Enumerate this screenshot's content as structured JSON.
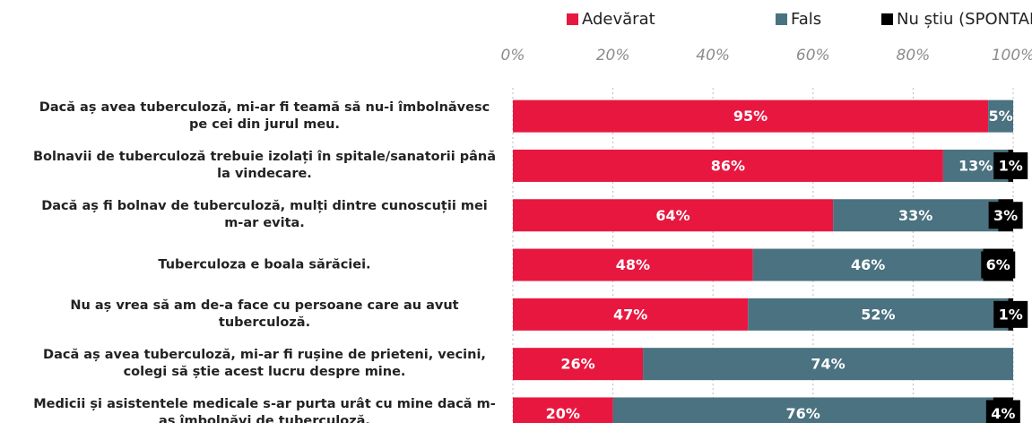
{
  "chart_data": {
    "type": "stacked-bar-horizontal",
    "categories": [
      "Dacă aș avea tuberculoză, mi-ar fi teamă să nu-i îmbolnăvesc pe cei din jurul meu.",
      "Bolnavii de tuberculoză trebuie izolați în spitale/sanatorii până la vindecare.",
      "Dacă aș fi bolnav de tuberculoză, mulți dintre cunoscuții mei m-ar evita.",
      "Tuberculoza e boala sărăciei.",
      "Nu aș vrea să am de-a face cu persoane care au avut tuberculoză.",
      "Dacă aș avea tuberculoză, mi-ar fi rușine de prieteni, vecini, colegi să știe acest lucru despre mine.",
      "Medicii și asistentele medicale s-ar purta urât cu mine dacă m-as îmbolnăvi de tuberculoză."
    ],
    "series": [
      {
        "name": "Adevărat",
        "color": "#e8173f",
        "values": [
          95,
          86,
          64,
          48,
          47,
          26,
          20
        ],
        "value_labels": [
          "95%",
          "86%",
          "64%",
          "48%",
          "47%",
          "26%",
          "20%"
        ]
      },
      {
        "name": "Fals",
        "color": "#4a7280",
        "values": [
          5,
          13,
          33,
          46,
          52,
          74,
          76
        ],
        "value_labels": [
          "5%",
          "13%",
          "33%",
          "46%",
          "52%",
          "74%",
          "76%"
        ]
      },
      {
        "name": "Nu știu (SPONTAN)",
        "color": "#000000",
        "values": [
          null,
          1,
          3,
          6,
          1,
          null,
          4
        ],
        "value_labels": [
          null,
          "1%",
          "3%",
          "6%",
          "1%",
          null,
          "4%"
        ]
      }
    ],
    "xlim": [
      0,
      100
    ],
    "xticks": [
      {
        "value": 0,
        "label": "0%"
      },
      {
        "value": 20,
        "label": "20%"
      },
      {
        "value": 40,
        "label": "40%"
      },
      {
        "value": 60,
        "label": "60%"
      },
      {
        "value": 80,
        "label": "80%"
      },
      {
        "value": 100,
        "label": "100%"
      }
    ],
    "grid": true
  }
}
